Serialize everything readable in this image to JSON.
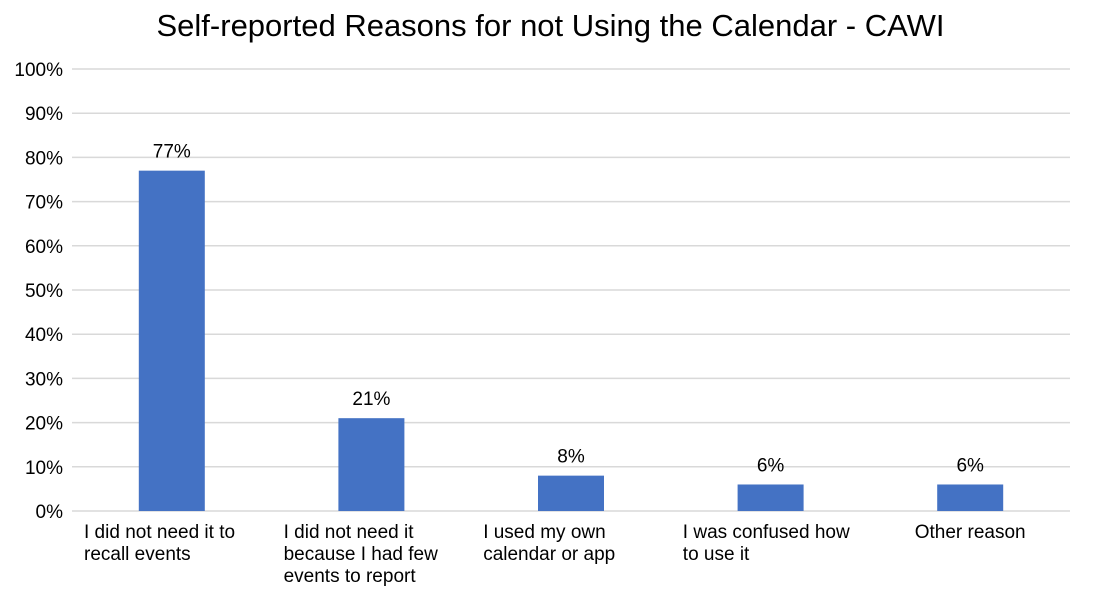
{
  "chart_data": {
    "type": "bar",
    "title": "Self-reported Reasons for not Using the Calendar - CAWI",
    "xlabel": "",
    "ylabel": "",
    "categories": [
      [
        "I did not need it to",
        "recall events"
      ],
      [
        "I did not need it",
        "because I had few",
        "events to report"
      ],
      [
        "I used my own",
        "calendar or app"
      ],
      [
        "I was confused how",
        "to use it"
      ],
      [
        "Other reason"
      ]
    ],
    "values": [
      77,
      21,
      8,
      6,
      6
    ],
    "data_labels": [
      "77%",
      "21%",
      "8%",
      "6%",
      "6%"
    ],
    "ylim": [
      0,
      100
    ],
    "yticks": [
      "0%",
      "10%",
      "20%",
      "30%",
      "40%",
      "50%",
      "60%",
      "70%",
      "80%",
      "90%",
      "100%"
    ],
    "grid": true,
    "legend": "none",
    "bar_color": "#4472c4"
  }
}
